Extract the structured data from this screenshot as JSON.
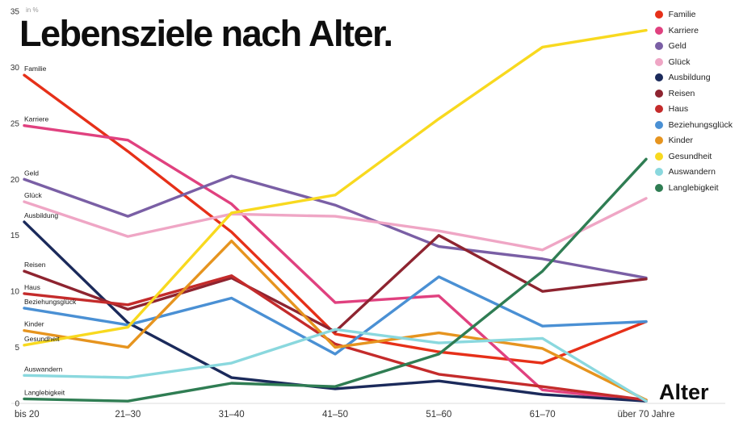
{
  "title": "Lebensziele nach Alter.",
  "unit_label": "in %",
  "x_axis_title": "Alter",
  "chart_data": {
    "type": "line",
    "title": "Lebensziele nach Alter.",
    "xlabel": "Alter",
    "ylabel": "in %",
    "ylim": [
      0,
      35
    ],
    "yticks": [
      0,
      5,
      10,
      15,
      20,
      25,
      30,
      35
    ],
    "grid": false,
    "legend_position": "top-right",
    "categories": [
      "bis 20",
      "21–30",
      "31–40",
      "41–50",
      "51–60",
      "61–70",
      "über 70 Jahre"
    ],
    "series": [
      {
        "name": "Familie",
        "color": "#e63019",
        "values": [
          29.3,
          22.5,
          15.3,
          6.2,
          4.6,
          3.6,
          7.3
        ]
      },
      {
        "name": "Karriere",
        "color": "#e0417f",
        "values": [
          24.8,
          23.5,
          17.8,
          9.0,
          9.6,
          1.2,
          0.2
        ]
      },
      {
        "name": "Geld",
        "color": "#7a5fa5",
        "values": [
          20.0,
          16.7,
          20.3,
          17.7,
          14.0,
          12.9,
          11.2
        ]
      },
      {
        "name": "Glück",
        "color": "#efa6c5",
        "values": [
          18.0,
          14.9,
          16.9,
          16.7,
          15.4,
          13.7,
          18.3
        ]
      },
      {
        "name": "Ausbildung",
        "color": "#1b2a5b",
        "values": [
          16.2,
          7.2,
          2.3,
          1.3,
          2.0,
          0.8,
          0.2
        ]
      },
      {
        "name": "Reisen",
        "color": "#8e2430",
        "values": [
          11.8,
          8.4,
          11.2,
          6.4,
          15.0,
          10.0,
          11.1
        ]
      },
      {
        "name": "Haus",
        "color": "#c42b2b",
        "values": [
          9.8,
          8.8,
          11.4,
          5.3,
          2.6,
          1.5,
          0.3
        ]
      },
      {
        "name": "Beziehungsglück",
        "color": "#4a90d4",
        "values": [
          8.5,
          7.0,
          9.4,
          4.4,
          11.3,
          6.9,
          7.3
        ]
      },
      {
        "name": "Kinder",
        "color": "#e6941f",
        "values": [
          6.5,
          5.0,
          14.5,
          5.0,
          6.3,
          4.9,
          0.3
        ]
      },
      {
        "name": "Gesundheit",
        "color": "#f8d91f",
        "values": [
          5.2,
          6.8,
          17.0,
          18.6,
          25.4,
          31.8,
          33.3
        ]
      },
      {
        "name": "Auswandern",
        "color": "#8ad8de",
        "values": [
          2.5,
          2.3,
          3.6,
          6.6,
          5.4,
          5.8,
          0.2
        ]
      },
      {
        "name": "Langlebigkeit",
        "color": "#2f7d53",
        "values": [
          0.4,
          0.2,
          1.8,
          1.5,
          4.4,
          11.8,
          21.8
        ]
      }
    ]
  }
}
